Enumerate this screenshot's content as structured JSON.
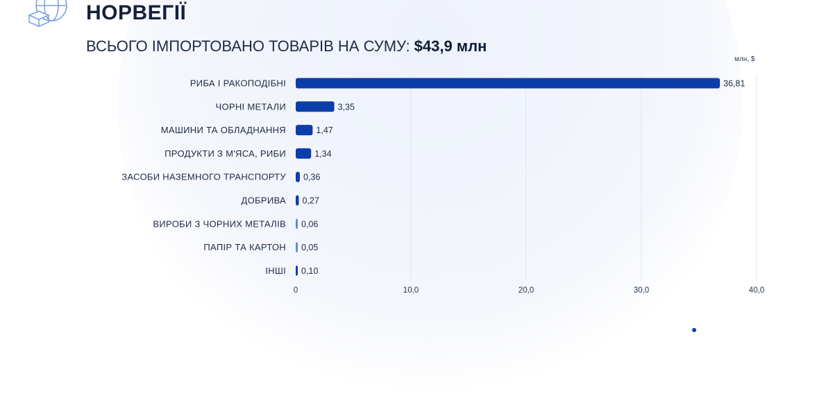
{
  "header": {
    "title": "НОРВЕГІЇ",
    "subtitle_prefix": "ВСЬОГО ІМПОРТОВАНО ТОВАРІВ НА СУМУ:",
    "subtitle_amount": "$43,9 млн"
  },
  "colors": {
    "bar": "#0b3ea8",
    "bar_light": "#5b8ee0",
    "grid": "#dfe5f1"
  },
  "chart_data": {
    "type": "bar",
    "orientation": "horizontal",
    "unit_label": "млн, $",
    "categories": [
      "РИБА І РАКОПОДІБНІ",
      "ЧОРНІ МЕТАЛИ",
      "МАШИНИ ТА ОБЛАДНАННЯ",
      "ПРОДУКТИ З М'ЯСА, РИБИ",
      "ЗАСОБИ НАЗЕМНОГО ТРАНСПОРТУ",
      "ДОБРИВА",
      "ВИРОБИ З ЧОРНИХ МЕТАЛІВ",
      "ПАПІР ТА КАРТОН",
      "ІНШІ"
    ],
    "values": [
      36.81,
      3.35,
      1.47,
      1.34,
      0.36,
      0.27,
      0.06,
      0.05,
      0.1
    ],
    "value_labels": [
      "36,81",
      "3,35",
      "1,47",
      "1,34",
      "0,36",
      "0,27",
      "0,06",
      "0,05",
      "0,10"
    ],
    "xlim": [
      0,
      40
    ],
    "xticks": [
      0,
      10,
      20,
      30,
      40
    ],
    "xtick_labels": [
      "0",
      "10,0",
      "20,0",
      "30,0",
      "40,0"
    ],
    "grid": true
  }
}
